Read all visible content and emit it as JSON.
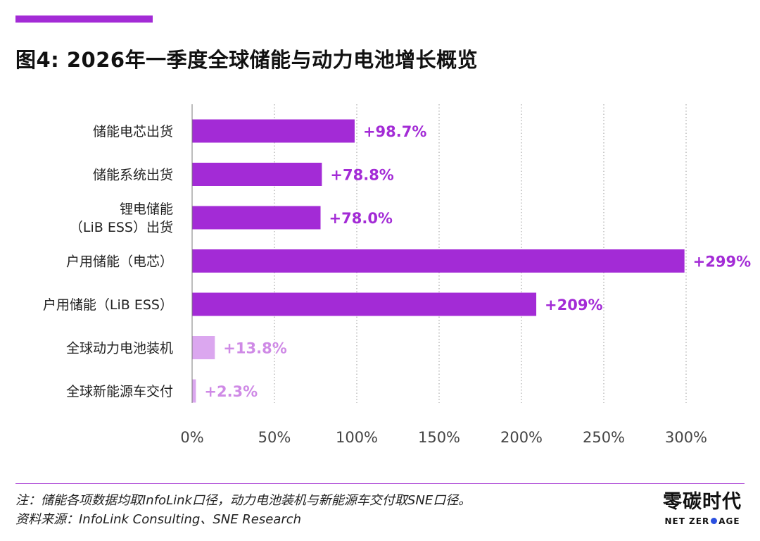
{
  "header": {
    "title": "图4: 2026年一季度全球储能与动力电池增长概览"
  },
  "chart_data": {
    "type": "bar",
    "orientation": "horizontal",
    "categories": [
      [
        "储能电芯出货"
      ],
      [
        "储能系统出货"
      ],
      [
        "锂电储能",
        "（LiB ESS）出货"
      ],
      [
        "户用储能（电芯）"
      ],
      [
        "户用储能（LiB ESS）"
      ],
      [
        "全球动力电池装机"
      ],
      [
        "全球新能源车交付"
      ]
    ],
    "values": [
      98.7,
      78.8,
      78.0,
      299,
      209,
      13.8,
      2.3
    ],
    "value_labels": [
      "+98.7%",
      "+78.8%",
      "+78.0%",
      "+299%",
      "+209%",
      "+13.8%",
      "+2.3%"
    ],
    "bar_styles": [
      "strong",
      "strong",
      "strong",
      "strong",
      "strong",
      "light",
      "light"
    ],
    "colors": {
      "strong": "#a32bd6",
      "light": "#dba7ef",
      "strong_label": "#a32bd6",
      "light_label": "#cf8ae6"
    },
    "xlim": [
      0,
      300
    ],
    "xticks": [
      0,
      50,
      100,
      150,
      200,
      250,
      300
    ],
    "xtick_labels": [
      "0%",
      "50%",
      "100%",
      "150%",
      "200%",
      "250%",
      "300%"
    ],
    "grid": "vertical dotted"
  },
  "footer": {
    "note": "注：储能各项数据均取InfoLink口径，动力电池装机与新能源车交付取SNE口径。",
    "source": "资料来源：InfoLink Consulting、SNE Research",
    "logo_cn": "零碳时代",
    "logo_en_left": "NET ZER",
    "logo_en_right": "AGE"
  }
}
